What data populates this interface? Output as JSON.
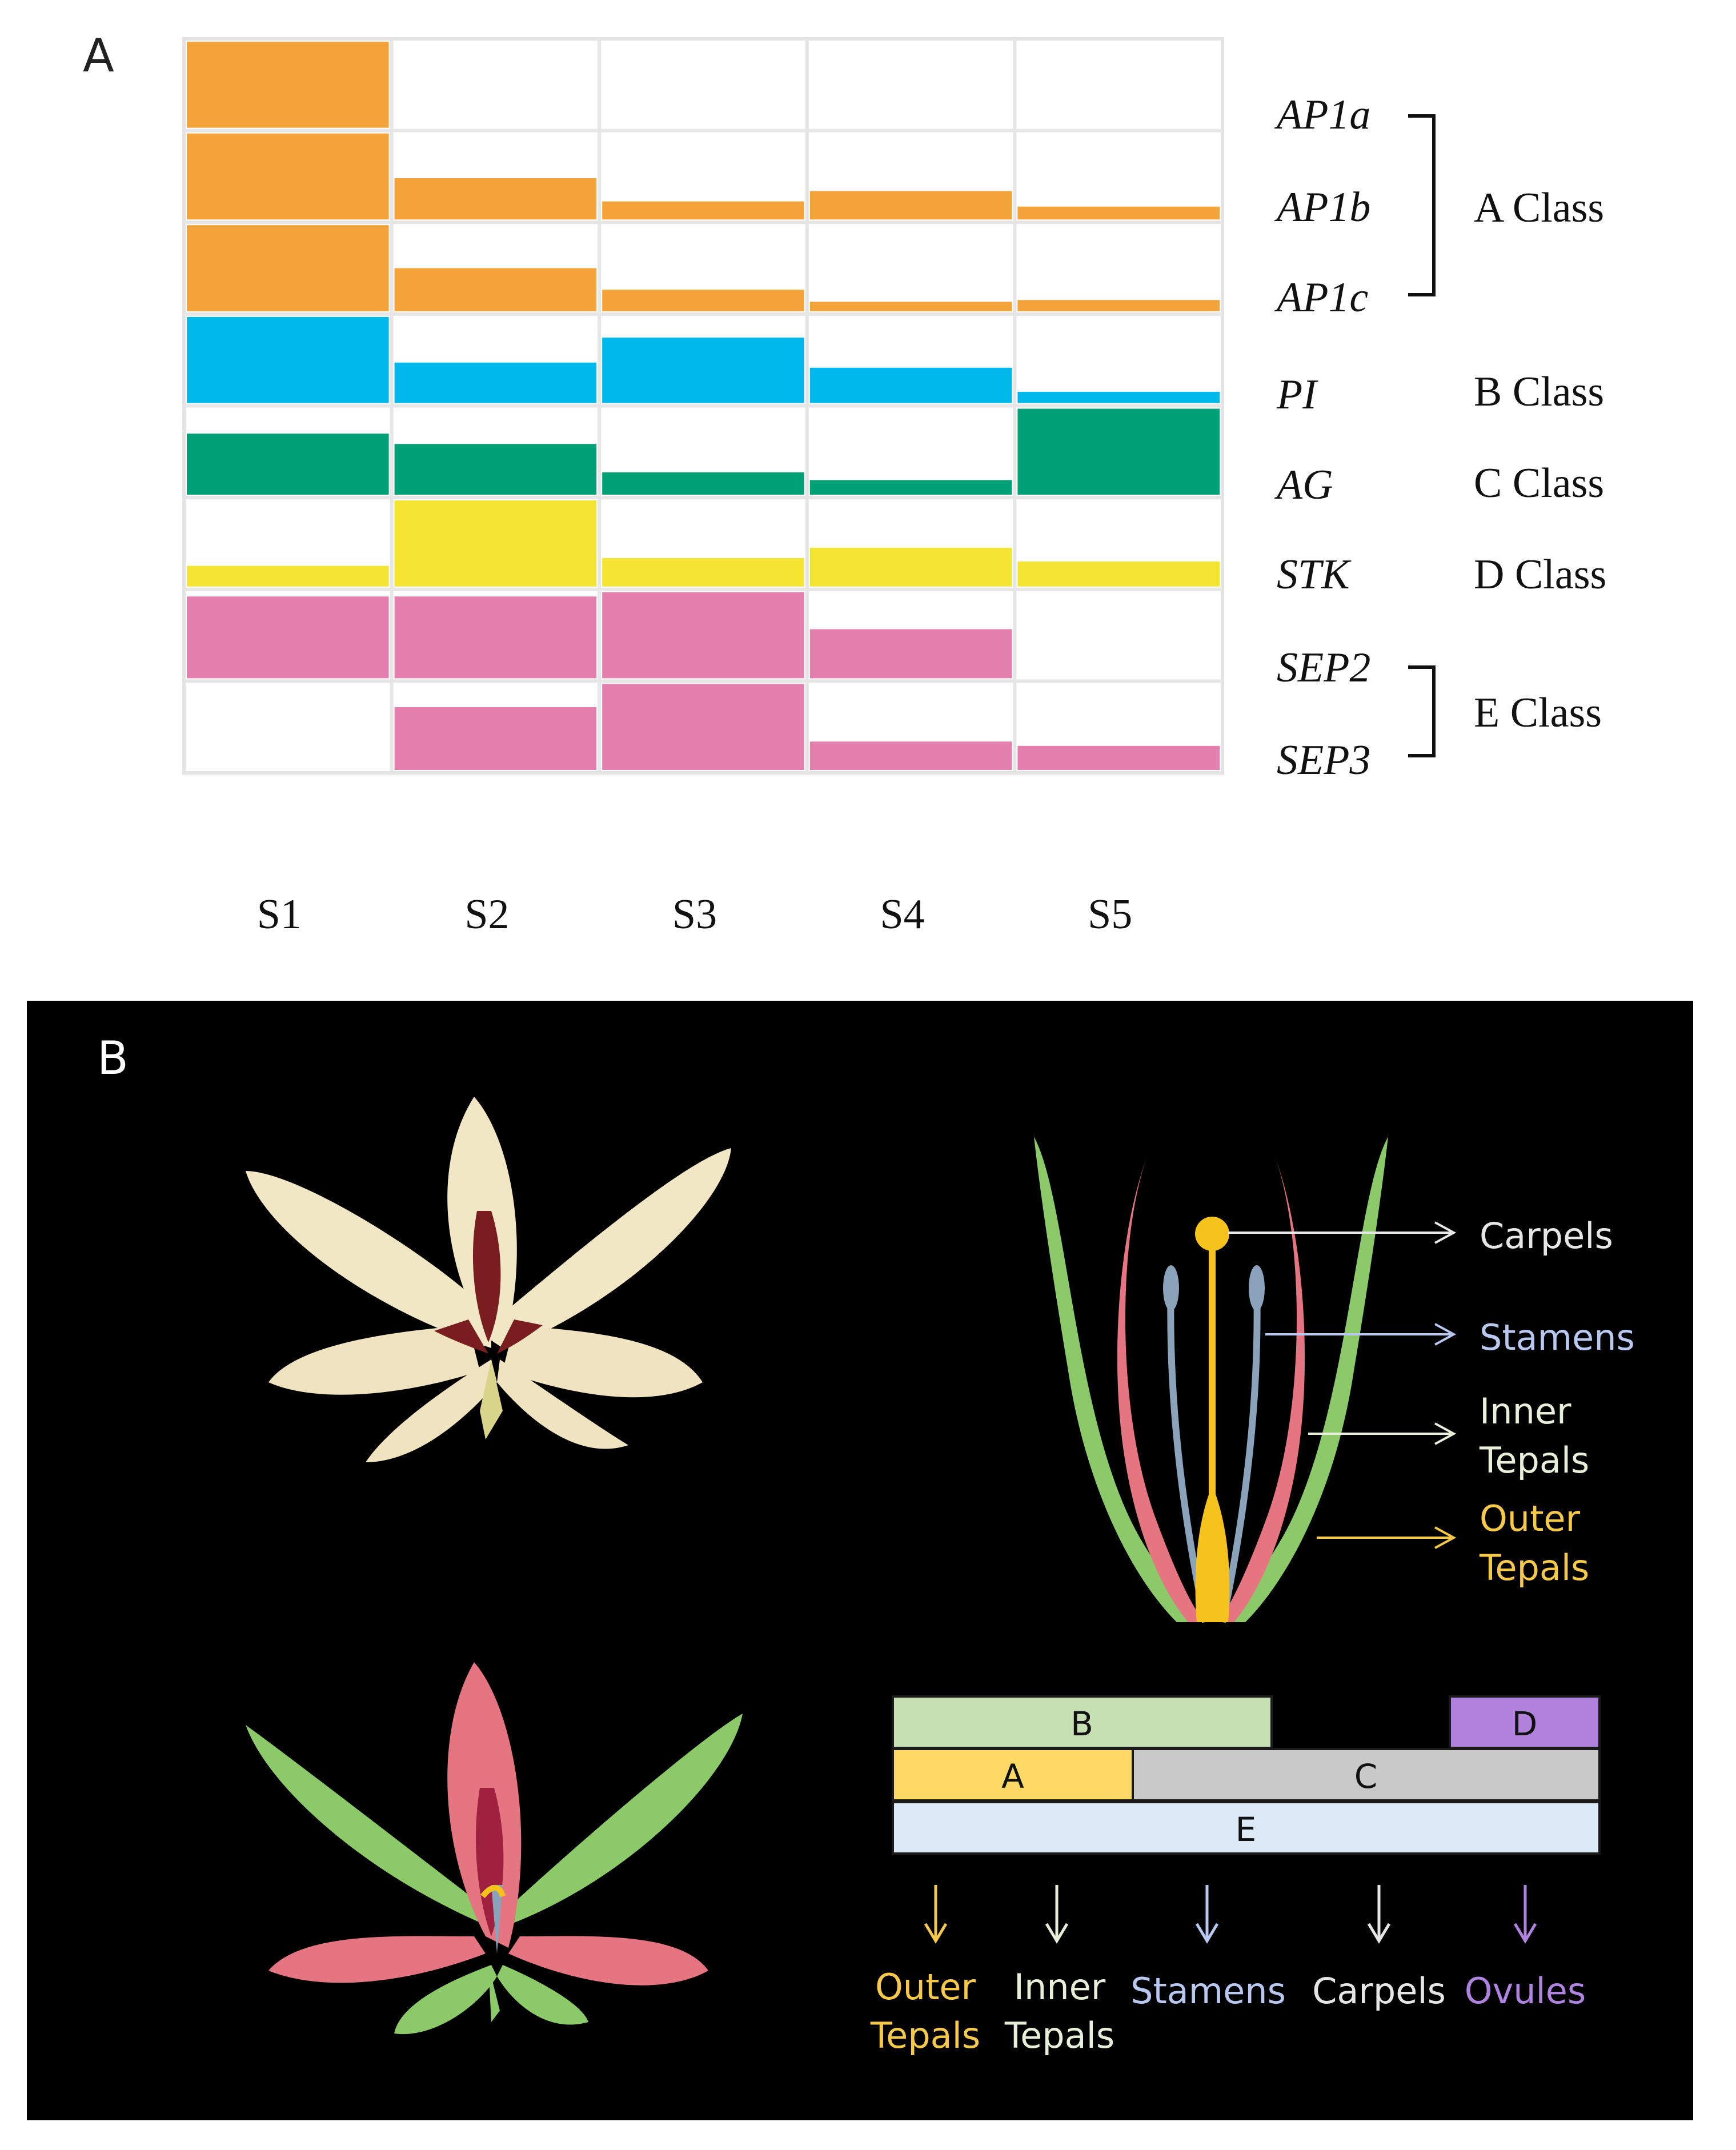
{
  "panel_a": {
    "label": "A",
    "stages": [
      "S1",
      "S2",
      "S3",
      "S4",
      "S5"
    ],
    "genes": [
      "AP1a",
      "AP1b",
      "AP1c",
      "PI",
      "AG",
      "STK",
      "SEP2",
      "SEP3"
    ],
    "class_labels": {
      "a": "A Class",
      "b": "B Class",
      "c": "C Class",
      "d": "D Class",
      "e": "E Class"
    }
  },
  "chart_data": {
    "type": "bar",
    "categories": [
      "S1",
      "S2",
      "S3",
      "S4",
      "S5"
    ],
    "ylim": [
      0,
      1
    ],
    "series": [
      {
        "name": "AP1a",
        "color": "#f3a33a",
        "values": [
          1.0,
          0.0,
          0.0,
          0.0,
          0.0
        ]
      },
      {
        "name": "AP1b",
        "color": "#f3a33a",
        "values": [
          1.0,
          0.48,
          0.21,
          0.33,
          0.15
        ]
      },
      {
        "name": "AP1c",
        "color": "#f3a33a",
        "values": [
          1.0,
          0.5,
          0.25,
          0.11,
          0.13
        ]
      },
      {
        "name": "PI",
        "color": "#00b8eb",
        "values": [
          1.0,
          0.47,
          0.76,
          0.41,
          0.13
        ]
      },
      {
        "name": "AG",
        "color": "#00a077",
        "values": [
          0.71,
          0.59,
          0.26,
          0.17,
          1.0
        ]
      },
      {
        "name": "STK",
        "color": "#f5e533",
        "values": [
          0.24,
          1.0,
          0.33,
          0.45,
          0.29
        ]
      },
      {
        "name": "SEP2",
        "color": "#e57fae",
        "values": [
          0.95,
          0.95,
          1.0,
          0.57,
          0.0
        ]
      },
      {
        "name": "SEP3",
        "color": "#e57fae",
        "values": [
          0.0,
          0.73,
          1.0,
          0.33,
          0.28
        ]
      }
    ]
  },
  "panel_b": {
    "label": "B",
    "flower_colors": {
      "outer": "#f2e7c4",
      "inner": "#f0e3bf",
      "blotch": "#7a1d20"
    },
    "model_colors": {
      "outer_tepal": "#8cc968",
      "inner_tepal": "#e57580",
      "stamen": "#8aa3bb",
      "carpel": "#f6c21c"
    },
    "organ_labels": {
      "carpels": "Carpels",
      "stamens": "Stamens",
      "inner": [
        "Inner",
        "Tepals"
      ],
      "outer": [
        "Outer",
        "Tepals"
      ]
    },
    "abcde": {
      "b": "B",
      "d": "D",
      "a": "A",
      "c": "C",
      "e": "E",
      "colors": {
        "b": "#c6e0b4",
        "d": "#b182db",
        "a": "#ffd965",
        "c": "#c9c9c9",
        "e": "#dce9f6"
      }
    },
    "bottom_labels": {
      "outer": [
        "Outer",
        "Tepals"
      ],
      "inner": [
        "Inner",
        "Tepals"
      ],
      "stamens": "Stamens",
      "carpels": "Carpels",
      "ovules": "Ovules"
    },
    "label_colors": {
      "outer": "#f7c948",
      "inner": "#e7efd9",
      "stamens": "#b8c8f0",
      "carpels": "#e6e6e6",
      "ovules": "#b083e0"
    }
  }
}
